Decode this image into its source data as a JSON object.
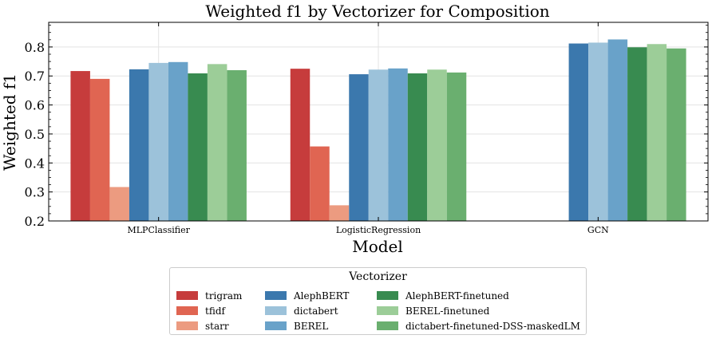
{
  "chart_data": {
    "type": "bar",
    "title": "Weighted f1 by Vectorizer for Composition",
    "xlabel": "Model",
    "ylabel": "Weighted f1",
    "ylim": [
      0.2,
      0.885
    ],
    "yticks": [
      "0.2",
      "0.3",
      "0.4",
      "0.5",
      "0.6",
      "0.7",
      "0.8"
    ],
    "grid": true,
    "categories": [
      "MLPClassifier",
      "LogisticRegression",
      "GCN"
    ],
    "legend": {
      "title": "Vectorizer",
      "placement": "bottom-center",
      "columns": 3
    },
    "series": [
      {
        "name": "trigram",
        "color": "#c63c3c",
        "values": [
          0.717,
          0.725,
          null
        ]
      },
      {
        "name": "tfidf",
        "color": "#e06552",
        "values": [
          0.69,
          0.457,
          null
        ]
      },
      {
        "name": "starr",
        "color": "#ec9b80",
        "values": [
          0.317,
          0.254,
          null
        ]
      },
      {
        "name": "AlephBERT",
        "color": "#3b78ad",
        "values": [
          0.723,
          0.706,
          0.812
        ]
      },
      {
        "name": "dictabert",
        "color": "#9cc2da",
        "values": [
          0.745,
          0.722,
          0.815
        ]
      },
      {
        "name": "BEREL",
        "color": "#69a2c9",
        "values": [
          0.748,
          0.726,
          0.826
        ]
      },
      {
        "name": "AlephBERT-finetuned",
        "color": "#388b50",
        "values": [
          0.709,
          0.709,
          0.799
        ]
      },
      {
        "name": "BEREL-finetuned",
        "color": "#9ccd98",
        "values": [
          0.741,
          0.722,
          0.81
        ]
      },
      {
        "name": "dictabert-finetuned-DSS-maskedLM",
        "color": "#6aaf6f",
        "values": [
          0.72,
          0.712,
          0.795
        ]
      }
    ]
  }
}
